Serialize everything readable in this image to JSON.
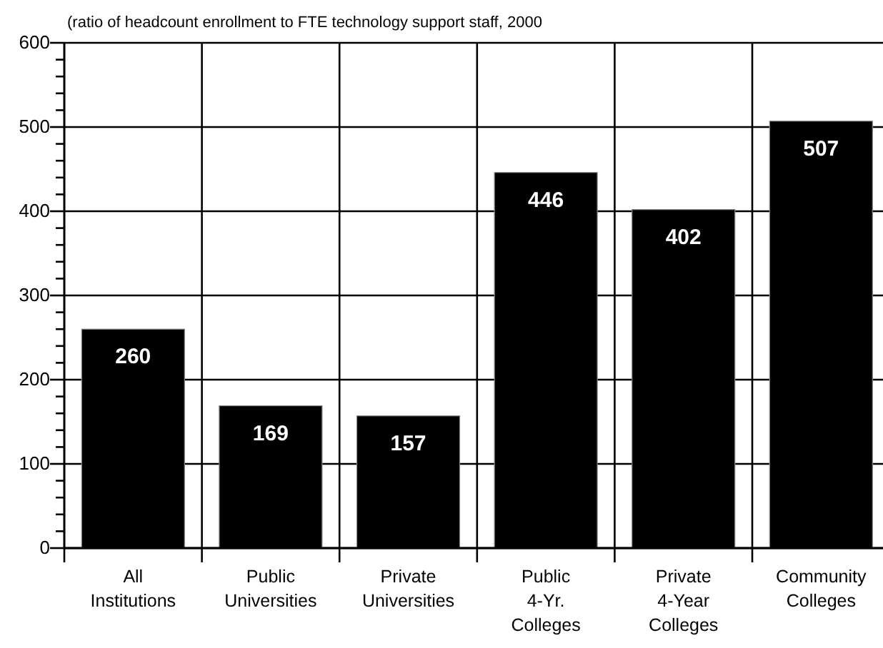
{
  "chart_data": {
    "type": "bar",
    "title": "(ratio of headcount enrollment to FTE technology support staff, 2000",
    "categories": [
      "All Institutions",
      "Public Universities",
      "Private Universities",
      "Public 4-Yr. Colleges",
      "Private 4-Year Colleges",
      "Community Colleges"
    ],
    "values": [
      260,
      169,
      157,
      446,
      402,
      507
    ],
    "color": "#000000",
    "data_labels": true,
    "ylim": [
      0,
      600
    ],
    "yticks": [
      0,
      {
        "value": 20,
        "label": null
      },
      {
        "value": 40,
        "label": null
      },
      {
        "value": 60,
        "label": null
      },
      {
        "value": 80,
        "label": null
      },
      100,
      {
        "value": 120,
        "label": null
      },
      {
        "value": 140,
        "label": null
      },
      {
        "value": 160,
        "label": null
      },
      {
        "value": 180,
        "label": null
      },
      200,
      {
        "value": 220,
        "label": null
      },
      {
        "value": 240,
        "label": null
      },
      {
        "value": 260,
        "label": null
      },
      {
        "value": 280,
        "label": null
      },
      300,
      {
        "value": 320,
        "label": null
      },
      {
        "value": 340,
        "label": null
      },
      {
        "value": 360,
        "label": null
      },
      {
        "value": 380,
        "label": null
      },
      400,
      {
        "value": 420,
        "label": null
      },
      {
        "value": 440,
        "label": null
      },
      {
        "value": 460,
        "label": null
      },
      {
        "value": 480,
        "label": null
      },
      500,
      {
        "value": 520,
        "label": null
      },
      {
        "value": 540,
        "label": null
      },
      {
        "value": 560,
        "label": null
      },
      {
        "value": 580,
        "label": null
      },
      600
    ],
    "grid": true
  }
}
